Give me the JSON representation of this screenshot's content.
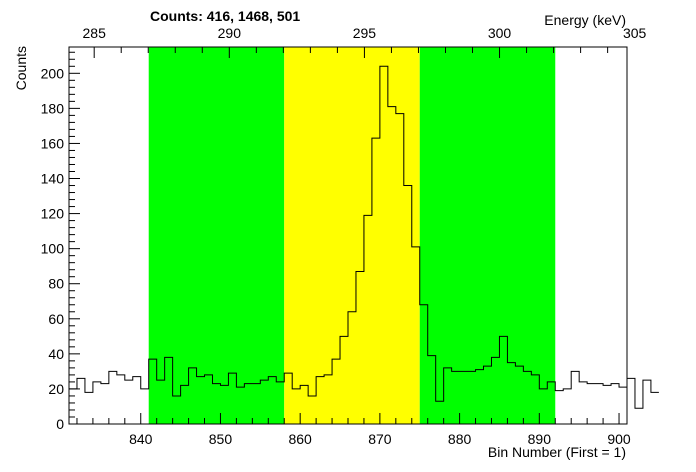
{
  "chart_data": {
    "type": "histogram",
    "title": "Counts:   416,   1468,   501",
    "xlabel": "Bin Number (First = 1)",
    "ylabel": "Counts",
    "x2label": "Energy (keV)",
    "xlim": [
      831,
      901
    ],
    "ylim": [
      0,
      215
    ],
    "bin_width": 1,
    "bin_start": 831,
    "values": [
      20,
      26,
      18,
      24,
      23,
      30,
      28,
      25,
      27,
      20,
      37,
      25,
      38,
      16,
      22,
      32,
      27,
      28,
      23,
      22,
      29,
      21,
      23,
      23,
      25,
      27,
      24,
      29,
      20,
      22,
      16,
      27,
      28,
      37,
      50,
      64,
      87,
      119,
      163,
      204,
      181,
      177,
      136,
      101,
      68,
      39,
      13,
      32,
      30,
      30,
      30,
      31,
      33,
      38,
      50,
      35,
      33,
      30,
      28,
      20,
      24,
      19,
      20,
      30,
      24,
      23,
      23,
      22,
      23,
      21,
      26,
      9,
      25,
      18
    ],
    "regions": [
      {
        "start": 841,
        "end": 858,
        "color": "#00ff00"
      },
      {
        "start": 858,
        "end": 875,
        "color": "#ffff00"
      },
      {
        "start": 875,
        "end": 892,
        "color": "#00ff00"
      }
    ],
    "x_ticks": [
      "840",
      "850",
      "860",
      "870",
      "880",
      "890",
      "900"
    ],
    "y_ticks": [
      "0",
      "20",
      "40",
      "60",
      "80",
      "100",
      "120",
      "140",
      "160",
      "180",
      "200"
    ],
    "top_ticks": [
      "285",
      "290",
      "295",
      "300",
      "305"
    ],
    "grid": false
  }
}
